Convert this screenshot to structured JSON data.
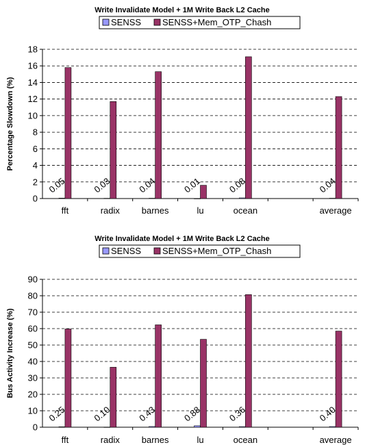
{
  "colors": {
    "senss": "#9999ff",
    "senss_otp": "#993366",
    "axis": "#000000",
    "grid": "#000000"
  },
  "chart_data": [
    {
      "type": "bar",
      "title": "Write Invalidate Model + 1M Write Back L2 Cache",
      "ylabel": "Percentage Slowdown (%)",
      "xlabel": "",
      "categories": [
        "fft",
        "radix",
        "barnes",
        "lu",
        "ocean",
        "",
        "average"
      ],
      "series": [
        {
          "name": "SENSS",
          "values": [
            0.05,
            0.03,
            0.04,
            0.01,
            0.08,
            null,
            0.04
          ],
          "labels": [
            "0.05",
            "0.03",
            "0.04",
            "0.01",
            "0.08",
            "",
            "0.04"
          ]
        },
        {
          "name": "SENSS+Mem_OTP_Chash",
          "values": [
            15.8,
            11.7,
            15.3,
            1.6,
            17.1,
            null,
            12.3
          ]
        }
      ],
      "ylim": [
        0,
        18
      ],
      "yticks": [
        0,
        2,
        4,
        6,
        8,
        10,
        12,
        14,
        16,
        18
      ],
      "grid": true,
      "legend": "top"
    },
    {
      "type": "bar",
      "title": "Write Invalidate Model + 1M Write Back L2 Cache",
      "ylabel": "Bus Activity Increase (%)",
      "xlabel": "",
      "categories": [
        "fft",
        "radix",
        "barnes",
        "lu",
        "ocean",
        "",
        "average"
      ],
      "series": [
        {
          "name": "SENSS",
          "values": [
            0.25,
            0.1,
            0.43,
            0.88,
            0.36,
            null,
            0.4
          ],
          "labels": [
            "0.25",
            "0.10",
            "0.43",
            "0.88",
            "0.36",
            "",
            "0.40"
          ]
        },
        {
          "name": "SENSS+Mem_OTP_Chash",
          "values": [
            59.8,
            36.5,
            62.3,
            53.5,
            80.7,
            null,
            58.5
          ]
        }
      ],
      "ylim": [
        0,
        90
      ],
      "yticks": [
        0,
        10,
        20,
        30,
        40,
        50,
        60,
        70,
        80,
        90
      ],
      "grid": true,
      "legend": "top"
    }
  ]
}
